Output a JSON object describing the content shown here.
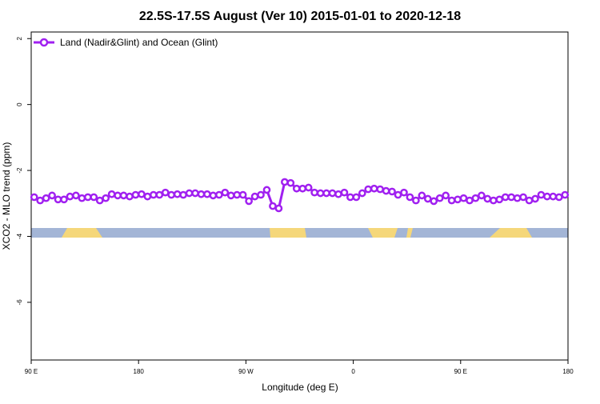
{
  "chart_data": {
    "type": "line",
    "title": "22.5S-17.5S August (Ver 10)   2015-01-01 to 2020-12-18",
    "x_label": "Longitude (deg E)",
    "y_label": "XCO2 - MLO trend (ppm)",
    "x": [
      92.5,
      97.5,
      102.5,
      107.5,
      112.5,
      117.5,
      122.5,
      127.5,
      132.5,
      137.5,
      142.5,
      147.5,
      152.5,
      157.5,
      162.5,
      167.5,
      172.5,
      177.5,
      182.5,
      187.5,
      192.5,
      197.5,
      202.5,
      207.5,
      212.5,
      217.5,
      222.5,
      227.5,
      232.5,
      237.5,
      242.5,
      247.5,
      252.5,
      257.5,
      262.5,
      267.5,
      272.5,
      277.5,
      282.5,
      287.5,
      292.5,
      297.5,
      302.5,
      307.5,
      312.5,
      317.5,
      322.5,
      327.5,
      332.5,
      337.5,
      342.5,
      347.5,
      352.5,
      357.5,
      362.5,
      367.5,
      372.5,
      377.5,
      382.5,
      387.5,
      392.5,
      397.5,
      402.5,
      407.5,
      412.5,
      417.5,
      422.5,
      427.5,
      432.5,
      437.5,
      442.5,
      447.5,
      452.5,
      457.5,
      462.5,
      467.5,
      472.5,
      477.5,
      482.5,
      487.5,
      492.5,
      497.5,
      502.5,
      507.5,
      512.5,
      517.5,
      522.5,
      527.5,
      532.5,
      537.5
    ],
    "series": [
      {
        "name": "Land (Nadir&Glint) and Ocean (Glint)",
        "color": "#a020f0",
        "values": [
          -2.81,
          -2.91,
          -2.84,
          -2.76,
          -2.88,
          -2.88,
          -2.79,
          -2.76,
          -2.84,
          -2.81,
          -2.81,
          -2.91,
          -2.84,
          -2.72,
          -2.76,
          -2.76,
          -2.79,
          -2.74,
          -2.72,
          -2.79,
          -2.74,
          -2.74,
          -2.67,
          -2.74,
          -2.72,
          -2.74,
          -2.69,
          -2.69,
          -2.72,
          -2.72,
          -2.76,
          -2.74,
          -2.67,
          -2.76,
          -2.74,
          -2.74,
          -2.93,
          -2.79,
          -2.74,
          -2.59,
          -3.08,
          -3.15,
          -2.35,
          -2.38,
          -2.55,
          -2.55,
          -2.52,
          -2.67,
          -2.69,
          -2.69,
          -2.69,
          -2.72,
          -2.67,
          -2.81,
          -2.81,
          -2.69,
          -2.57,
          -2.55,
          -2.57,
          -2.62,
          -2.64,
          -2.74,
          -2.67,
          -2.81,
          -2.91,
          -2.76,
          -2.86,
          -2.93,
          -2.84,
          -2.76,
          -2.91,
          -2.88,
          -2.84,
          -2.91,
          -2.84,
          -2.76,
          -2.86,
          -2.91,
          -2.88,
          -2.81,
          -2.81,
          -2.84,
          -2.81,
          -2.91,
          -2.86,
          -2.74,
          -2.79,
          -2.79,
          -2.81,
          -2.74
        ]
      }
    ],
    "xlim": [
      90,
      540
    ],
    "xticks": [
      {
        "value": 90,
        "label": "90 E"
      },
      180,
      {
        "value": 270,
        "label": "90 W"
      },
      {
        "value": 360,
        "label": "0"
      },
      {
        "value": 450,
        "label": "90 E"
      },
      180
    ],
    "ylim": [
      -7.75,
      2.2
    ],
    "yticks": [
      2,
      0,
      -2,
      -4,
      -6
    ],
    "legend": "top-left"
  }
}
